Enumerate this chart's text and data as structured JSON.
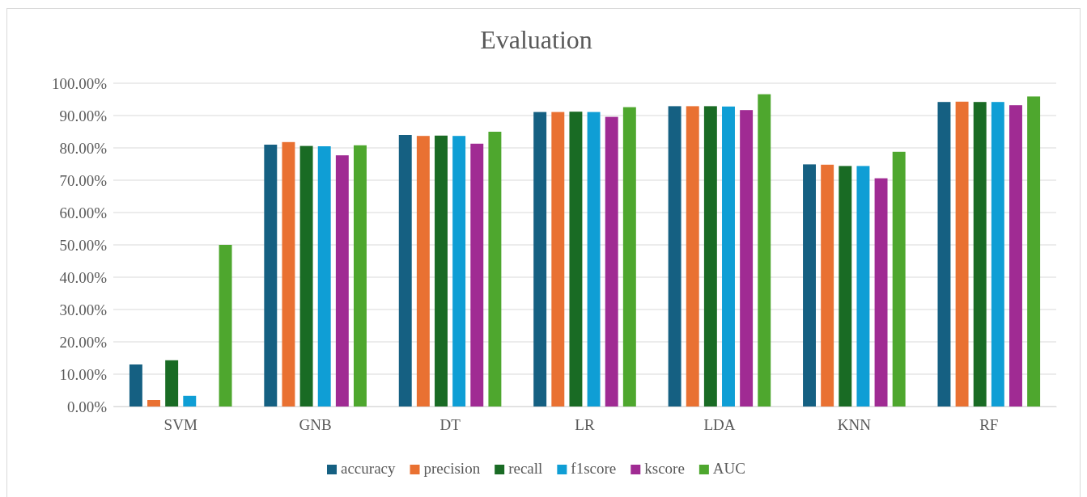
{
  "chart_data": {
    "type": "bar",
    "title": "Evaluation",
    "categories": [
      "SVM",
      "GNB",
      "DT",
      "LR",
      "LDA",
      "KNN",
      "RF"
    ],
    "series": [
      {
        "name": "accuracy",
        "color": "#156082",
        "values": [
          13,
          81,
          84,
          91.1,
          92.9,
          74.9,
          94.2
        ]
      },
      {
        "name": "precision",
        "color": "#e97132",
        "values": [
          2,
          81.8,
          83.7,
          91.1,
          92.9,
          74.8,
          94.3
        ]
      },
      {
        "name": "recall",
        "color": "#196b24",
        "values": [
          14.3,
          80.6,
          83.8,
          91.2,
          92.9,
          74.4,
          94.2
        ]
      },
      {
        "name": "f1score",
        "color": "#0f9ed5",
        "values": [
          3.3,
          80.5,
          83.7,
          91.1,
          92.8,
          74.4,
          94.2
        ]
      },
      {
        "name": "kscore",
        "color": "#a02b93",
        "values": [
          0,
          77.7,
          81.3,
          89.6,
          91.7,
          70.6,
          93.2
        ]
      },
      {
        "name": "AUC",
        "color": "#4ea72e",
        "values": [
          50,
          80.8,
          85,
          92.6,
          96.6,
          78.8,
          95.9
        ]
      }
    ],
    "ylim": [
      0,
      100
    ],
    "yticks": [
      {
        "value": 0,
        "label": "0.00%"
      },
      {
        "value": 10,
        "label": "10.00%"
      },
      {
        "value": 20,
        "label": "20.00%"
      },
      {
        "value": 30,
        "label": "30.00%"
      },
      {
        "value": 40,
        "label": "40.00%"
      },
      {
        "value": 50,
        "label": "50.00%"
      },
      {
        "value": 60,
        "label": "60.00%"
      },
      {
        "value": 70,
        "label": "70.00%"
      },
      {
        "value": 80,
        "label": "80.00%"
      },
      {
        "value": 90,
        "label": "90.00%"
      },
      {
        "value": 100,
        "label": "100.00%"
      }
    ],
    "grid": "y",
    "legend": "bottom"
  }
}
